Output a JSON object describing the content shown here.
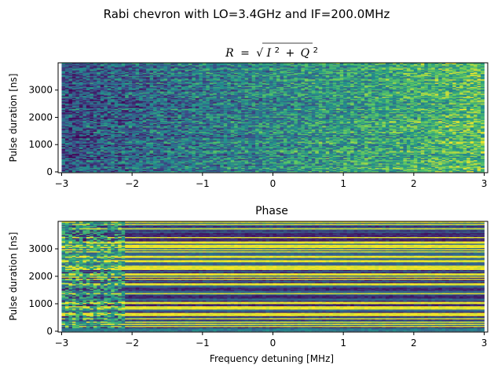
{
  "suptitle": "Rabi chevron with LO=3.4GHz and IF=200.0MHz",
  "colormap": [
    "#440154",
    "#3b528b",
    "#21918c",
    "#5ec962",
    "#fde725"
  ],
  "chart_data": [
    {
      "type": "heatmap",
      "title": "R = √(I² + Q²)",
      "title_parts": {
        "R": "R",
        "eq": "=",
        "I": "I",
        "Q": "Q",
        "sup": "2",
        "plus": "+"
      },
      "xlabel": "",
      "ylabel": "Pulse duration [ns]",
      "xlim": [
        -3.05,
        3.05
      ],
      "ylim": [
        -30,
        4000
      ],
      "x_ticks": [
        -3,
        -2,
        -1,
        0,
        1,
        2,
        3
      ],
      "x_tick_labels": [
        "−3",
        "−2",
        "−1",
        "0",
        "1",
        "2",
        "3"
      ],
      "y_ticks": [
        0,
        1000,
        2000,
        3000
      ],
      "y_tick_labels": [
        "0",
        "1000",
        "2000",
        "3000"
      ],
      "x_range": [
        -3.0,
        3.0
      ],
      "y_range": [
        0,
        4000
      ],
      "n_cols": 120,
      "n_rows": 100,
      "pattern": "noisy-amplitude",
      "color_trend": "darker (blue) on left, brighter (green-yellow) on right"
    },
    {
      "type": "heatmap",
      "title": "Phase",
      "xlabel": "Frequency detuning [MHz]",
      "ylabel": "Pulse duration [ns]",
      "xlim": [
        -3.05,
        3.05
      ],
      "ylim": [
        -30,
        4000
      ],
      "x_ticks": [
        -3,
        -2,
        -1,
        0,
        1,
        2,
        3
      ],
      "x_tick_labels": [
        "−3",
        "−2",
        "−1",
        "0",
        "1",
        "2",
        "3"
      ],
      "y_ticks": [
        0,
        1000,
        2000,
        3000
      ],
      "y_tick_labels": [
        "0",
        "1000",
        "2000",
        "3000"
      ],
      "x_range": [
        -3.0,
        3.0
      ],
      "y_range": [
        0,
        4000
      ],
      "n_cols": 120,
      "n_rows": 100,
      "pattern": "horizontal-stripes",
      "color_trend": "yellow and dark-purple horizontal stripes, teal/green patches on the left"
    }
  ]
}
